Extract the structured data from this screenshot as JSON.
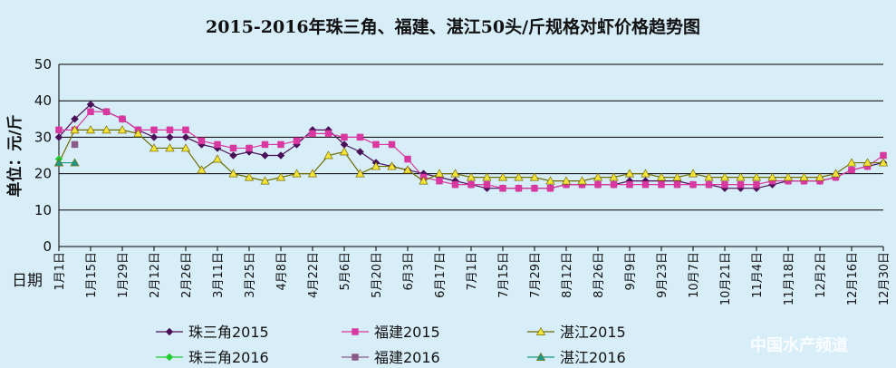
{
  "chart_data": {
    "type": "line",
    "title": "2015-2016年珠三角、福建、湛江50头/斤规格对虾价格趋势图",
    "y_label": "单位：元/斤",
    "x_label": "日期",
    "watermark": "中国水产频道",
    "categories": [
      "1月1日",
      null,
      "1月15日",
      null,
      "1月29日",
      null,
      "2月12日",
      null,
      "2月26日",
      null,
      "3月11日",
      null,
      "3月25日",
      null,
      "4月8日",
      null,
      "4月22日",
      null,
      "5月6日",
      null,
      "5月20日",
      null,
      "6月3日",
      null,
      "6月17日",
      null,
      "7月1日",
      null,
      "7月15日",
      null,
      "7月29日",
      null,
      "8月12日",
      null,
      "8月26日",
      null,
      "9月9日",
      null,
      "9月23日",
      null,
      "10月7日",
      null,
      "10月21日",
      null,
      "11月4日",
      null,
      "11月18日",
      null,
      "12月2日",
      null,
      "12月16日",
      null,
      "12月30日"
    ],
    "ylim": [
      0,
      50
    ],
    "yticks": [
      0,
      10,
      20,
      30,
      40,
      50
    ],
    "grid": true,
    "series": [
      {
        "name": "珠三角2015",
        "color": "#4a1058",
        "values": [
          30,
          35,
          39,
          37,
          35,
          32,
          30,
          30,
          30,
          28,
          27,
          25,
          26,
          25,
          25,
          28,
          32,
          32,
          28,
          26,
          23,
          22,
          21,
          20,
          19,
          18,
          17,
          16,
          16,
          16,
          16,
          16,
          17,
          17,
          17,
          17,
          18,
          18,
          18,
          18,
          17,
          17,
          16,
          16,
          16,
          17,
          18,
          18,
          18,
          19,
          21,
          22,
          23
        ]
      },
      {
        "name": "福建2015",
        "color": "#d8389f",
        "values": [
          32,
          32,
          37,
          37,
          35,
          32,
          32,
          32,
          32,
          29,
          28,
          27,
          27,
          28,
          28,
          29,
          31,
          31,
          30,
          30,
          28,
          28,
          24,
          19,
          18,
          17,
          17,
          17,
          16,
          16,
          16,
          16,
          17,
          17,
          17,
          17,
          17,
          17,
          17,
          17,
          17,
          17,
          17,
          17,
          17,
          18,
          18,
          18,
          18,
          19,
          21,
          22,
          25
        ]
      },
      {
        "name": "湛江2015",
        "color": "#f2e43a",
        "values": [
          23,
          32,
          32,
          32,
          32,
          31,
          27,
          27,
          27,
          21,
          24,
          20,
          19,
          18,
          19,
          20,
          20,
          25,
          26,
          20,
          22,
          22,
          21,
          18,
          20,
          20,
          19,
          19,
          19,
          19,
          19,
          18,
          18,
          18,
          19,
          19,
          20,
          20,
          19,
          19,
          20,
          19,
          19,
          19,
          19,
          19,
          19,
          19,
          19,
          20,
          23,
          23,
          23
        ]
      },
      {
        "name": "珠三角2016",
        "color": "#22cc33",
        "values": [
          24,
          null,
          null,
          null,
          null,
          null,
          null,
          null,
          null,
          null,
          null,
          null,
          null,
          null,
          null,
          null,
          null,
          null,
          null,
          null,
          null,
          null,
          null,
          null,
          null,
          null,
          null,
          null,
          null,
          null,
          null,
          null,
          null,
          null,
          null,
          null,
          null,
          null,
          null,
          null,
          null,
          null,
          null,
          null,
          null,
          null,
          null,
          null,
          null,
          null,
          null,
          null,
          null
        ]
      },
      {
        "name": "福建2016",
        "color": "#8a5a8a",
        "values": [
          null,
          28,
          null,
          null,
          null,
          null,
          null,
          null,
          null,
          null,
          null,
          null,
          null,
          null,
          null,
          null,
          null,
          null,
          null,
          null,
          null,
          null,
          null,
          null,
          null,
          null,
          null,
          null,
          null,
          null,
          null,
          null,
          null,
          null,
          null,
          null,
          null,
          null,
          null,
          null,
          null,
          null,
          null,
          null,
          null,
          null,
          null,
          null,
          null,
          null,
          null,
          null,
          null
        ]
      },
      {
        "name": "湛江2016",
        "color": "#1a9a8a",
        "values": [
          23,
          23,
          null,
          null,
          null,
          null,
          null,
          null,
          null,
          null,
          null,
          null,
          null,
          null,
          null,
          null,
          null,
          null,
          null,
          null,
          null,
          null,
          null,
          null,
          null,
          null,
          null,
          null,
          null,
          null,
          null,
          null,
          null,
          null,
          null,
          null,
          null,
          null,
          null,
          null,
          null,
          null,
          null,
          null,
          null,
          null,
          null,
          null,
          null,
          null,
          null,
          null,
          null
        ]
      }
    ]
  }
}
